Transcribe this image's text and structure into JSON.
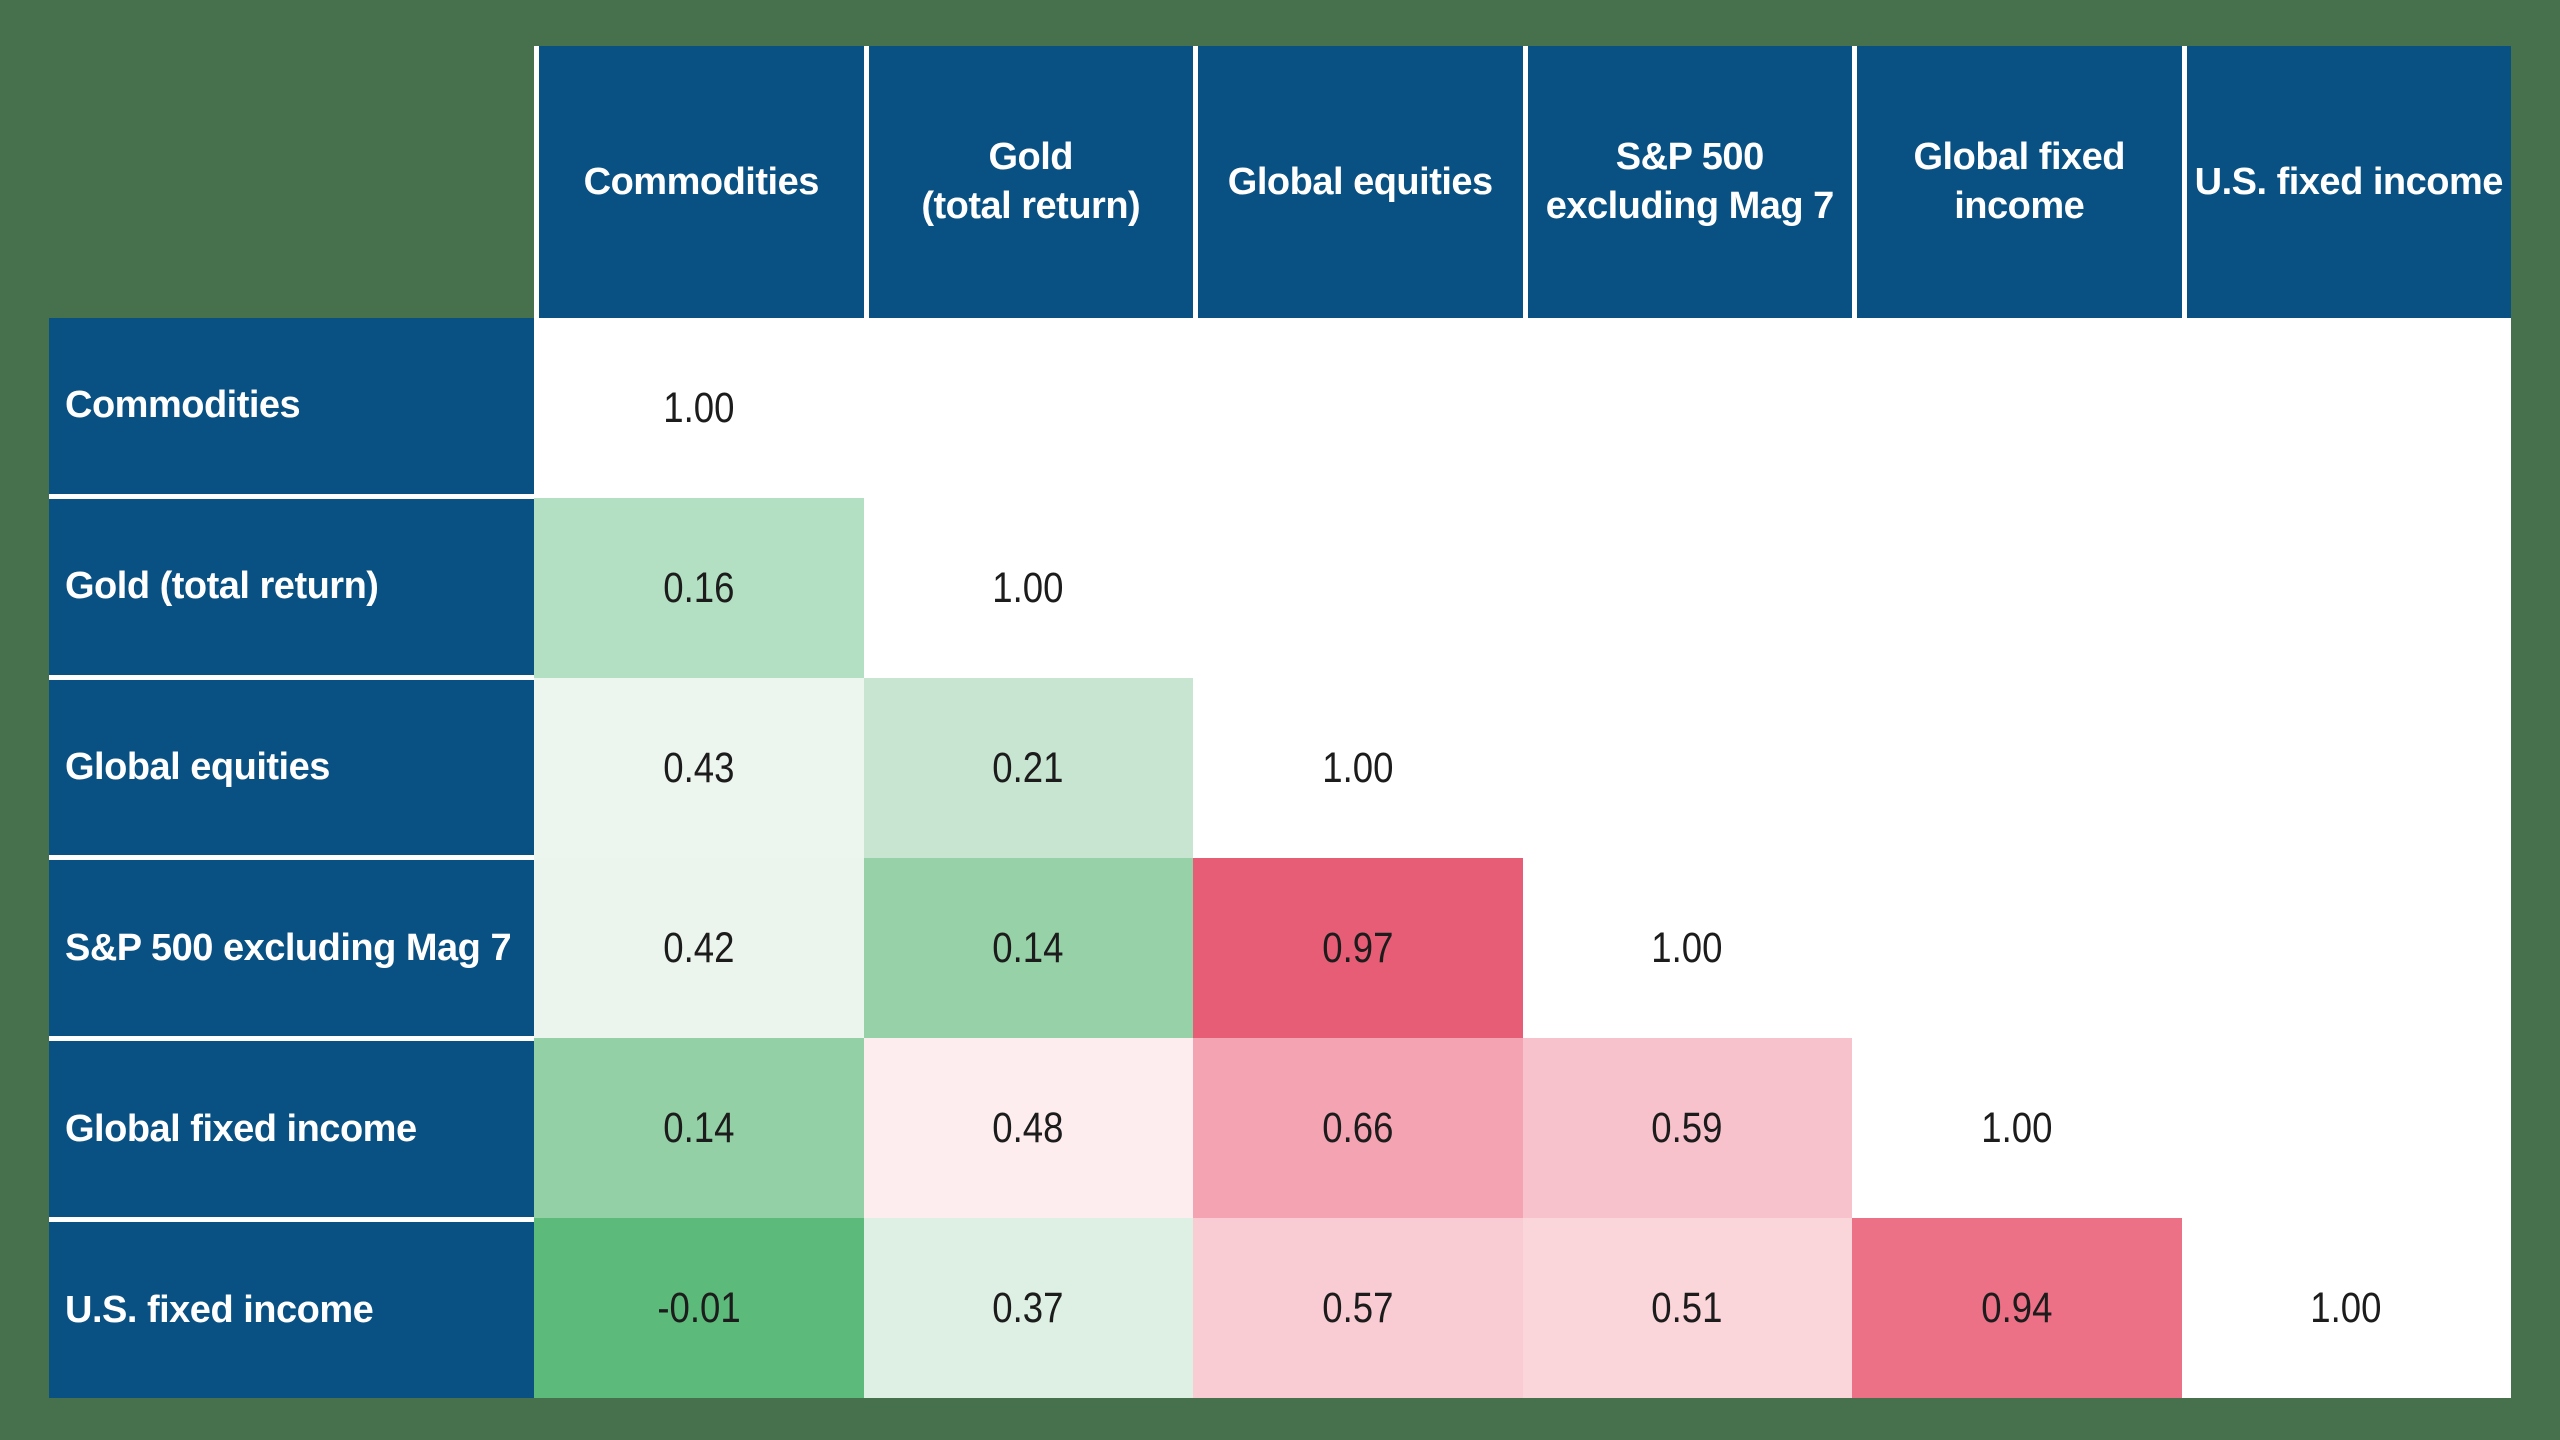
{
  "colors": {
    "page_background": "#47704d",
    "header_blue": "#0a5183",
    "grid_line": "#ffffff",
    "header_text": "#ffffff",
    "value_text": "#1c1c1c",
    "diagonal_bg": "#ffffff",
    "strong_green_low_corr": "#5cba7a",
    "strong_red_high_corr": "#e85d76"
  },
  "table": {
    "column_headers": [
      "Commodities",
      "Gold\n(total return)",
      "Global equities",
      "S&P 500\nexcluding Mag 7",
      "Global fixed\nincome",
      "U.S. fixed income"
    ],
    "rows": [
      {
        "label": "Commodities",
        "cells": [
          {
            "v": "1.00",
            "bg": "#ffffff"
          }
        ]
      },
      {
        "label": "Gold (total return)",
        "cells": [
          {
            "v": "0.16",
            "bg": "#b3dfc3"
          },
          {
            "v": "1.00",
            "bg": "#ffffff"
          }
        ]
      },
      {
        "label": "Global equities",
        "cells": [
          {
            "v": "0.43",
            "bg": "#edf5ef"
          },
          {
            "v": "0.21",
            "bg": "#c8e5d2"
          },
          {
            "v": "1.00",
            "bg": "#ffffff"
          }
        ]
      },
      {
        "label": "S&P 500 excluding Mag 7",
        "cells": [
          {
            "v": "0.42",
            "bg": "#ebf4ed"
          },
          {
            "v": "0.14",
            "bg": "#97d1a8"
          },
          {
            "v": "0.97",
            "bg": "#e85d76"
          },
          {
            "v": "1.00",
            "bg": "#ffffff"
          }
        ]
      },
      {
        "label": "Global fixed income",
        "cells": [
          {
            "v": "0.14",
            "bg": "#94d0a6"
          },
          {
            "v": "0.48",
            "bg": "#fdedef"
          },
          {
            "v": "0.66",
            "bg": "#f3a3b1"
          },
          {
            "v": "0.59",
            "bg": "#f7c2cb"
          },
          {
            "v": "1.00",
            "bg": "#ffffff"
          }
        ]
      },
      {
        "label": "U.S. fixed income",
        "cells": [
          {
            "v": "-0.01",
            "bg": "#5cba7a"
          },
          {
            "v": "0.37",
            "bg": "#def0e4"
          },
          {
            "v": "0.57",
            "bg": "#f9ccd4"
          },
          {
            "v": "0.51",
            "bg": "#fad5da"
          },
          {
            "v": "0.94",
            "bg": "#ec7086"
          },
          {
            "v": "1.00",
            "bg": "#ffffff"
          }
        ]
      }
    ]
  },
  "chart_data": {
    "type": "heatmap",
    "categories": [
      "Commodities",
      "Gold (total return)",
      "Global equities",
      "S&P 500 excluding Mag 7",
      "Global fixed income",
      "U.S. fixed income"
    ],
    "matrix": [
      [
        1.0,
        null,
        null,
        null,
        null,
        null
      ],
      [
        0.16,
        1.0,
        null,
        null,
        null,
        null
      ],
      [
        0.43,
        0.21,
        1.0,
        null,
        null,
        null
      ],
      [
        0.42,
        0.14,
        0.97,
        1.0,
        null,
        null
      ],
      [
        0.14,
        0.48,
        0.66,
        0.59,
        1.0,
        null
      ],
      [
        -0.01,
        0.37,
        0.57,
        0.51,
        0.94,
        1.0
      ]
    ],
    "value_range": [
      -1,
      1
    ],
    "layout_hints": {
      "shape": "lower-triangular correlation matrix",
      "diagonal_cells": "white, uncolored",
      "colormap": "saturated green at low/negative correlation through near-white at mid to saturated red-pink at high correlation",
      "grid": "white separator lines between header cells and between row-label cells only"
    }
  }
}
